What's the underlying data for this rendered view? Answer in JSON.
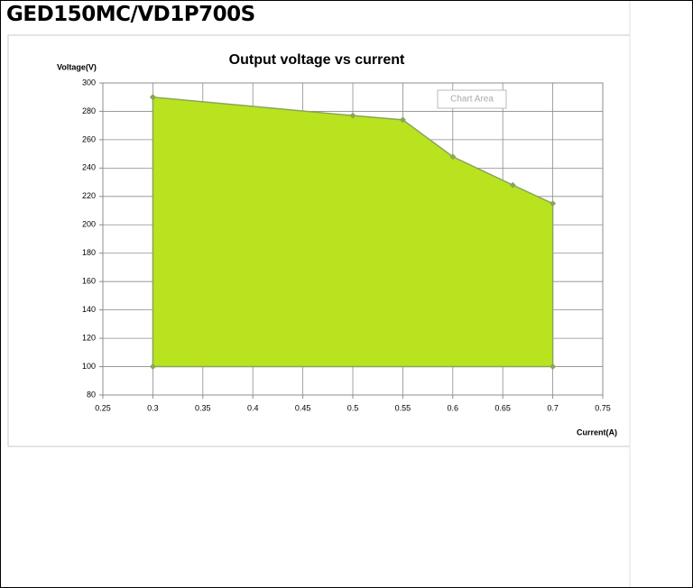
{
  "heading": "GED150MC/VD1P700S",
  "tooltip": "Chart Area",
  "chart_data": {
    "type": "area",
    "title": "Output voltage vs current",
    "y_label": "Voltage(V)",
    "x_label": "Current(A)",
    "x": [
      0.3,
      0.5,
      0.55,
      0.6,
      0.66,
      0.7,
      0.7,
      0.3,
      0.3
    ],
    "values": [
      290,
      277,
      274,
      248,
      228,
      215,
      100,
      100,
      290
    ],
    "color": "#b9e31f",
    "line_color": "#8aa55a",
    "xlim": [
      0.25,
      0.75
    ],
    "xticks": [
      0.25,
      0.3,
      0.35,
      0.4,
      0.45,
      0.5,
      0.55,
      0.6,
      0.65,
      0.7,
      0.75
    ],
    "ylim": [
      80,
      300
    ],
    "yticks": [
      80,
      100,
      120,
      140,
      160,
      180,
      200,
      220,
      240,
      260,
      280,
      300
    ],
    "grid": true
  }
}
